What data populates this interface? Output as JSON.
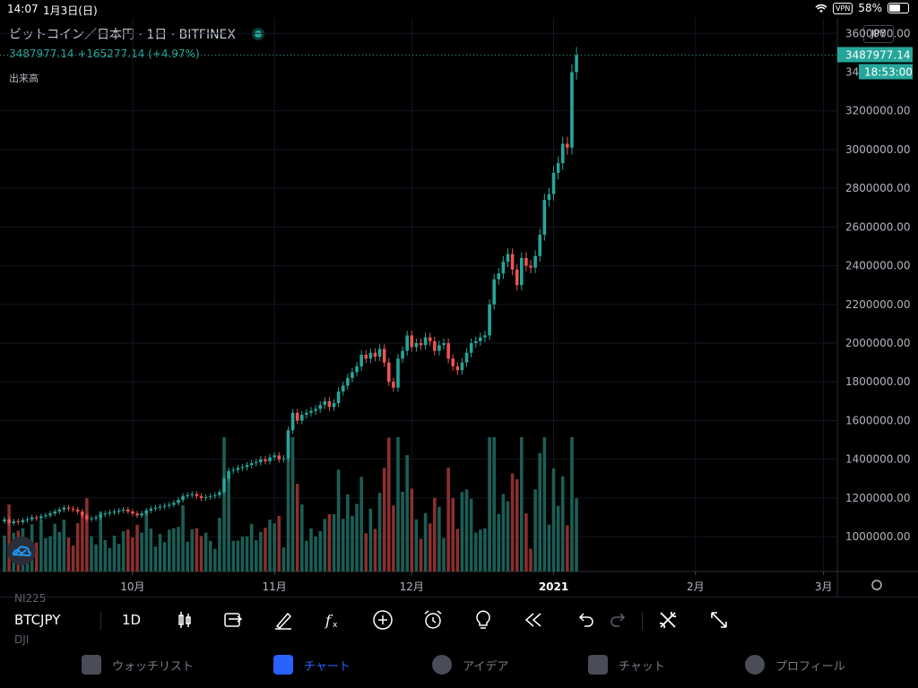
{
  "status_bar": {
    "time": "14:07",
    "date": "1月3日(日)",
    "vpn": "VPN",
    "battery": "58%",
    "battery_level": 0.58
  },
  "legend": {
    "title": "ビットコイン／日本円 · 1日 · BITFINEX",
    "quote": "3487977.14 +165277.14 (+4.97%)",
    "volume_label": "出来高"
  },
  "currency_button": "JPY",
  "price_label": "3487977.14",
  "countdown_label": "18:53:00",
  "countdown_prefix": "34",
  "toolbar": {
    "symbol": "BTCJPY",
    "interval": "1D"
  },
  "ghost_symbols": [
    "NI225",
    "DJI"
  ],
  "tabs": [
    {
      "label": "ウォッチリスト",
      "icon": "list-icon"
    },
    {
      "label": "チャート",
      "icon": "chart-icon"
    },
    {
      "label": "アイデア",
      "icon": "lightbulb-icon"
    },
    {
      "label": "チャット",
      "icon": "chat-icon"
    },
    {
      "label": "プロフィール",
      "icon": "profile-icon"
    }
  ],
  "colors": {
    "up": "#26a69a",
    "down": "#ef5350",
    "vol_up": "#1b5e56",
    "vol_down": "#8b2f2e",
    "accent": "#2962ff"
  },
  "chart_data": {
    "type": "candlestick",
    "y_axis": {
      "ticks": [
        1000000,
        1200000,
        1400000,
        1600000,
        1800000,
        2000000,
        2200000,
        2400000,
        2600000,
        2800000,
        3000000,
        3200000,
        3600000
      ],
      "tick_labels": [
        "1000000.00",
        "1200000.00",
        "1400000.00",
        "1600000.00",
        "1800000.00",
        "2000000.00",
        "2200000.00",
        "2400000.00",
        "2600000.00",
        "2800000.00",
        "3000000.00",
        "3200000.00",
        "3600000.00"
      ],
      "range": [
        820000,
        3680000
      ]
    },
    "x_axis": {
      "ticks": [
        {
          "label": "10月",
          "index": 28
        },
        {
          "label": "11月",
          "index": 59
        },
        {
          "label": "12月",
          "index": 89
        },
        {
          "label": "2021",
          "index": 120
        },
        {
          "label": "2月",
          "index": 151
        },
        {
          "label": "3月",
          "index": 179
        }
      ],
      "range_index": [
        0,
        182
      ]
    },
    "last_price": 3487977.14,
    "closes": [
      1090000,
      1070000,
      1080000,
      1075000,
      1085000,
      1090000,
      1100000,
      1095000,
      1105000,
      1110000,
      1120000,
      1130000,
      1140000,
      1150000,
      1145000,
      1140000,
      1130000,
      1110000,
      1090000,
      1095000,
      1100000,
      1115000,
      1120000,
      1125000,
      1130000,
      1135000,
      1140000,
      1130000,
      1120000,
      1110000,
      1120000,
      1135000,
      1145000,
      1150000,
      1155000,
      1160000,
      1165000,
      1175000,
      1190000,
      1210000,
      1215000,
      1220000,
      1210000,
      1200000,
      1205000,
      1210000,
      1215000,
      1230000,
      1300000,
      1340000,
      1345000,
      1355000,
      1360000,
      1370000,
      1380000,
      1385000,
      1400000,
      1390000,
      1410000,
      1420000,
      1400000,
      1405000,
      1550000,
      1640000,
      1600000,
      1630000,
      1640000,
      1650000,
      1660000,
      1680000,
      1700000,
      1670000,
      1690000,
      1750000,
      1780000,
      1820000,
      1850000,
      1880000,
      1940000,
      1920000,
      1950000,
      1930000,
      1970000,
      1900000,
      1800000,
      1770000,
      1920000,
      1960000,
      2040000,
      1980000,
      2000000,
      1990000,
      2030000,
      2010000,
      1960000,
      1990000,
      2000000,
      1920000,
      1880000,
      1860000,
      1900000,
      1950000,
      2000000,
      2010000,
      2030000,
      2040000,
      2200000,
      2330000,
      2360000,
      2420000,
      2460000,
      2380000,
      2300000,
      2440000,
      2400000,
      2390000,
      2450000,
      2560000,
      2740000,
      2770000,
      2880000,
      2930000,
      3030000,
      3010000,
      3400000,
      3487977
    ]
  }
}
